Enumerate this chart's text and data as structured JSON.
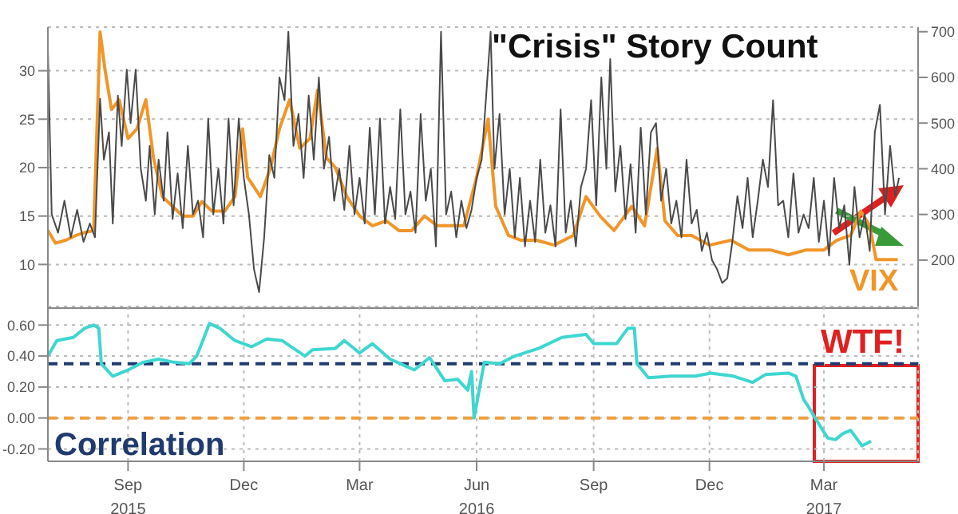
{
  "chart_data": [
    {
      "type": "line",
      "title": "\"Crisis\" Story Count",
      "xlim": [
        "2015-07-14",
        "2017-05-28"
      ],
      "xticks": [
        {
          "value": "2015-09-15",
          "label": null
        },
        {
          "value": "2015-12-15",
          "label": null
        },
        {
          "value": "2016-03-15",
          "label": null
        },
        {
          "value": "2016-06-15",
          "label": null
        },
        {
          "value": "2016-09-15",
          "label": null
        },
        {
          "value": "2016-12-15",
          "label": null
        },
        {
          "value": "2017-03-15",
          "label": null
        }
      ],
      "ylim": [
        5.5,
        34.5
      ],
      "yticks": [
        10,
        15,
        20,
        25,
        30
      ],
      "y2lim": [
        95,
        710
      ],
      "y2ticks": [
        200,
        300,
        400,
        500,
        600,
        700
      ],
      "grid": true,
      "tick_labels": "y",
      "line_style": "solid",
      "marker": "none",
      "series": [
        {
          "name": "VIX",
          "color": "#f0962a",
          "x": [
            "2015-07-14",
            "2015-07-20",
            "2015-07-28",
            "2015-08-05",
            "2015-08-12",
            "2015-08-19",
            "2015-08-24",
            "2015-08-28",
            "2015-09-02",
            "2015-09-08",
            "2015-09-15",
            "2015-09-22",
            "2015-09-29",
            "2015-10-05",
            "2015-10-12",
            "2015-10-20",
            "2015-10-28",
            "2015-11-05",
            "2015-11-12",
            "2015-11-20",
            "2015-11-30",
            "2015-12-08",
            "2015-12-14",
            "2015-12-18",
            "2015-12-28",
            "2016-01-05",
            "2016-01-12",
            "2016-01-20",
            "2016-01-28",
            "2016-02-05",
            "2016-02-11",
            "2016-02-18",
            "2016-02-25",
            "2016-03-05",
            "2016-03-15",
            "2016-03-25",
            "2016-04-05",
            "2016-04-15",
            "2016-04-25",
            "2016-05-05",
            "2016-05-15",
            "2016-05-25",
            "2016-06-05",
            "2016-06-15",
            "2016-06-24",
            "2016-06-30",
            "2016-07-10",
            "2016-07-20",
            "2016-08-01",
            "2016-08-15",
            "2016-08-30",
            "2016-09-09",
            "2016-09-20",
            "2016-10-01",
            "2016-10-15",
            "2016-10-25",
            "2016-11-04",
            "2016-11-10",
            "2016-11-20",
            "2016-12-01",
            "2016-12-15",
            "2017-01-01",
            "2017-01-15",
            "2017-02-01",
            "2017-02-15",
            "2017-03-01",
            "2017-03-15",
            "2017-03-25",
            "2017-04-05",
            "2017-04-13",
            "2017-04-20",
            "2017-04-25",
            "2017-05-05",
            "2017-05-12"
          ],
          "values": [
            13.5,
            12.2,
            12.5,
            13,
            13.3,
            13.5,
            34,
            30,
            26,
            27,
            23,
            24,
            27,
            21,
            17,
            16,
            15,
            15,
            16.5,
            15.5,
            15.5,
            17,
            24,
            19,
            17,
            20,
            24,
            27,
            22,
            23,
            28,
            21,
            20,
            17,
            15,
            14,
            14.5,
            13.5,
            13.5,
            15,
            14,
            14,
            14,
            19,
            25,
            16,
            13,
            12.5,
            12.5,
            12,
            13,
            17,
            15,
            13.5,
            16,
            14,
            22,
            14.5,
            13,
            13,
            12,
            12.5,
            11.5,
            11.5,
            11,
            11.5,
            11.5,
            12.5,
            13,
            15.5,
            14,
            10.5,
            10.5,
            10.5
          ]
        },
        {
          "axis": "y2",
          "color": "#4a4a4a",
          "x": [
            "2015-07-14",
            "2015-07-17",
            "2015-07-22",
            "2015-07-27",
            "2015-08-01",
            "2015-08-06",
            "2015-08-11",
            "2015-08-16",
            "2015-08-20",
            "2015-08-24",
            "2015-08-27",
            "2015-08-31",
            "2015-09-03",
            "2015-09-07",
            "2015-09-10",
            "2015-09-14",
            "2015-09-17",
            "2015-09-21",
            "2015-09-25",
            "2015-09-29",
            "2015-10-02",
            "2015-10-06",
            "2015-10-09",
            "2015-10-13",
            "2015-10-16",
            "2015-10-20",
            "2015-10-24",
            "2015-10-28",
            "2015-11-01",
            "2015-11-05",
            "2015-11-09",
            "2015-11-13",
            "2015-11-17",
            "2015-11-21",
            "2015-11-25",
            "2015-11-29",
            "2015-12-03",
            "2015-12-07",
            "2015-12-11",
            "2015-12-15",
            "2015-12-19",
            "2015-12-23",
            "2015-12-27",
            "2015-12-31",
            "2016-01-04",
            "2016-01-08",
            "2016-01-12",
            "2016-01-16",
            "2016-01-19",
            "2016-01-23",
            "2016-01-27",
            "2016-01-31",
            "2016-02-04",
            "2016-02-08",
            "2016-02-12",
            "2016-02-16",
            "2016-02-20",
            "2016-02-24",
            "2016-02-28",
            "2016-03-03",
            "2016-03-07",
            "2016-03-11",
            "2016-03-15",
            "2016-03-19",
            "2016-03-23",
            "2016-03-27",
            "2016-03-31",
            "2016-04-04",
            "2016-04-08",
            "2016-04-12",
            "2016-04-16",
            "2016-04-20",
            "2016-04-24",
            "2016-04-28",
            "2016-05-02",
            "2016-05-06",
            "2016-05-10",
            "2016-05-14",
            "2016-05-18",
            "2016-05-22",
            "2016-05-26",
            "2016-05-30",
            "2016-06-03",
            "2016-06-07",
            "2016-06-11",
            "2016-06-15",
            "2016-06-19",
            "2016-06-23",
            "2016-06-26",
            "2016-06-29",
            "2016-07-03",
            "2016-07-07",
            "2016-07-11",
            "2016-07-15",
            "2016-07-19",
            "2016-07-23",
            "2016-07-27",
            "2016-07-31",
            "2016-08-04",
            "2016-08-08",
            "2016-08-12",
            "2016-08-16",
            "2016-08-20",
            "2016-08-24",
            "2016-08-28",
            "2016-09-01",
            "2016-09-05",
            "2016-09-09",
            "2016-09-13",
            "2016-09-17",
            "2016-09-21",
            "2016-09-25",
            "2016-09-28",
            "2016-10-02",
            "2016-10-06",
            "2016-10-10",
            "2016-10-14",
            "2016-10-18",
            "2016-10-22",
            "2016-10-26",
            "2016-10-30",
            "2016-11-03",
            "2016-11-07",
            "2016-11-11",
            "2016-11-15",
            "2016-11-19",
            "2016-11-23",
            "2016-11-27",
            "2016-12-01",
            "2016-12-05",
            "2016-12-09",
            "2016-12-13",
            "2016-12-17",
            "2016-12-21",
            "2016-12-25",
            "2016-12-29",
            "2017-01-02",
            "2017-01-06",
            "2017-01-10",
            "2017-01-14",
            "2017-01-18",
            "2017-01-22",
            "2017-01-26",
            "2017-01-30",
            "2017-02-03",
            "2017-02-07",
            "2017-02-11",
            "2017-02-15",
            "2017-02-19",
            "2017-02-23",
            "2017-02-27",
            "2017-03-03",
            "2017-03-07",
            "2017-03-11",
            "2017-03-15",
            "2017-03-19",
            "2017-03-23",
            "2017-03-27",
            "2017-03-31",
            "2017-04-04",
            "2017-04-08",
            "2017-04-12",
            "2017-04-16",
            "2017-04-20",
            "2017-04-24",
            "2017-04-28",
            "2017-05-02",
            "2017-05-06",
            "2017-05-10",
            "2017-05-13"
          ],
          "values": [
            660,
            300,
            260,
            330,
            250,
            310,
            240,
            280,
            250,
            553,
            420,
            480,
            280,
            560,
            450,
            617,
            500,
            617,
            400,
            330,
            450,
            300,
            420,
            330,
            480,
            290,
            390,
            270,
            450,
            300,
            330,
            250,
            510,
            300,
            400,
            280,
            510,
            320,
            510,
            380,
            300,
            180,
            130,
            250,
            430,
            380,
            600,
            550,
            700,
            450,
            520,
            380,
            560,
            420,
            600,
            400,
            470,
            330,
            400,
            310,
            450,
            300,
            380,
            280,
            490,
            300,
            510,
            280,
            360,
            290,
            530,
            300,
            350,
            260,
            520,
            330,
            400,
            230,
            700,
            300,
            350,
            250,
            330,
            270,
            310,
            380,
            420,
            580,
            700,
            400,
            520,
            300,
            400,
            250,
            380,
            230,
            330,
            240,
            420,
            260,
            320,
            230,
            530,
            260,
            330,
            230,
            360,
            400,
            550,
            320,
            600,
            400,
            640,
            350,
            450,
            290,
            410,
            260,
            490,
            300,
            480,
            500,
            330,
            400,
            280,
            330,
            250,
            420,
            280,
            310,
            220,
            260,
            200,
            180,
            150,
            160,
            240,
            340,
            270,
            380,
            250,
            330,
            420,
            360,
            550,
            320,
            330,
            250,
            390,
            260,
            300,
            270,
            380,
            240,
            330,
            210,
            380,
            270,
            320,
            190,
            360,
            250,
            300,
            220,
            480,
            540,
            300,
            450,
            340,
            380
          ]
        }
      ]
    },
    {
      "type": "line",
      "annotations": [
        "Correlation",
        "WTF!"
      ],
      "xlim": [
        "2015-07-14",
        "2017-05-28"
      ],
      "xticks": [
        {
          "value": "2015-09-15",
          "label": "Sep\n2015"
        },
        {
          "value": "2015-12-15",
          "label": "Dec"
        },
        {
          "value": "2016-03-15",
          "label": "Mar"
        },
        {
          "value": "2016-06-15",
          "label": "Jun\n2016"
        },
        {
          "value": "2016-09-15",
          "label": "Sep"
        },
        {
          "value": "2016-12-15",
          "label": "Dec"
        },
        {
          "value": "2017-03-15",
          "label": "Mar\n2017"
        }
      ],
      "ylim": [
        -0.28,
        0.72
      ],
      "yticks": [
        {
          "value": 0.6,
          "label": "0.60"
        },
        {
          "value": 0.4,
          "label": "0.40"
        },
        {
          "value": 0.2,
          "label": "0.20"
        },
        {
          "value": 0,
          "label": "0.00"
        },
        {
          "value": -0.2,
          "label": "-0.20"
        }
      ],
      "grid": true,
      "line_style": "solid",
      "marker": "none",
      "ref_lines": [
        {
          "axis": "y",
          "value": 0.35,
          "color": "#1f3a6e",
          "line_style": "dashed"
        },
        {
          "axis": "y",
          "value": 0,
          "color": "#f0a040",
          "line_style": "dashed"
        }
      ],
      "series": [
        {
          "color": "#3fd6d0",
          "x": [
            "2015-07-14",
            "2015-07-21",
            "2015-08-03",
            "2015-08-12",
            "2015-08-19",
            "2015-08-23",
            "2015-08-25",
            "2015-09-03",
            "2015-09-15",
            "2015-09-27",
            "2015-10-09",
            "2015-10-21",
            "2015-11-02",
            "2015-11-08",
            "2015-11-18",
            "2015-11-26",
            "2015-12-08",
            "2015-12-21",
            "2016-01-02",
            "2016-01-14",
            "2016-02-01",
            "2016-02-07",
            "2016-02-25",
            "2016-03-03",
            "2016-03-15",
            "2016-03-25",
            "2016-04-08",
            "2016-04-27",
            "2016-05-09",
            "2016-05-21",
            "2016-05-31",
            "2016-06-08",
            "2016-06-11",
            "2016-06-13",
            "2016-06-21",
            "2016-07-03",
            "2016-07-15",
            "2016-08-03",
            "2016-08-21",
            "2016-09-09",
            "2016-09-15",
            "2016-10-03",
            "2016-10-12",
            "2016-10-17",
            "2016-10-19",
            "2016-10-28",
            "2016-11-15",
            "2016-12-04",
            "2016-12-16",
            "2017-01-03",
            "2017-01-18",
            "2017-01-28",
            "2017-02-15",
            "2017-02-21",
            "2017-02-27",
            "2017-03-03",
            "2017-03-08",
            "2017-03-18",
            "2017-03-24",
            "2017-03-30",
            "2017-04-05",
            "2017-04-14",
            "2017-04-21"
          ],
          "values": [
            0.4,
            0.5,
            0.52,
            0.58,
            0.6,
            0.58,
            0.35,
            0.27,
            0.31,
            0.36,
            0.38,
            0.36,
            0.35,
            0.4,
            0.61,
            0.58,
            0.5,
            0.46,
            0.51,
            0.5,
            0.4,
            0.44,
            0.45,
            0.5,
            0.42,
            0.48,
            0.38,
            0.31,
            0.39,
            0.24,
            0.25,
            0.18,
            0.3,
            0,
            0.36,
            0.35,
            0.4,
            0.45,
            0.52,
            0.54,
            0.48,
            0.48,
            0.58,
            0.58,
            0.35,
            0.26,
            0.27,
            0.27,
            0.29,
            0.27,
            0.23,
            0.28,
            0.29,
            0.27,
            0.12,
            0.07,
            0,
            -0.13,
            -0.14,
            -0.1,
            -0.08,
            -0.18,
            -0.15
          ]
        }
      ]
    }
  ]
}
